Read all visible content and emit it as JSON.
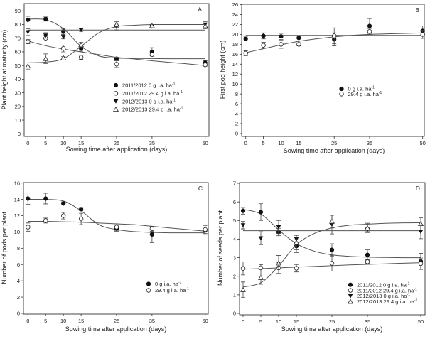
{
  "chart_data": [
    {
      "type": "scatter",
      "panel_label": "A",
      "xlabel": "Sowing time after application (days)",
      "ylabel": "Plant height at maturity (cm)",
      "x_ticks": [
        0,
        5,
        10,
        15,
        25,
        35,
        50
      ],
      "y_ticks": [
        0,
        10,
        20,
        30,
        40,
        50,
        60,
        70,
        80,
        90
      ],
      "legend_position": "lower-center",
      "grid": false,
      "fit_x": [
        0,
        5,
        10,
        15,
        20,
        25,
        30,
        35,
        40,
        45,
        50
      ],
      "series": [
        {
          "name": "2011/2012 0 g i.a. ha",
          "name_sup": "-1",
          "marker": "filled-circle",
          "x": [
            0,
            5,
            10,
            15,
            25,
            35,
            50
          ],
          "y": [
            83.5,
            84,
            75,
            62.5,
            55,
            60,
            52
          ],
          "err": [
            2.5,
            1.5,
            2,
            2,
            1,
            3,
            1.5
          ],
          "fit": [
            84,
            83.5,
            77,
            64,
            57,
            55.5,
            55.2,
            55.1,
            55,
            55,
            55
          ]
        },
        {
          "name": "2011/2012 29.4 g i.a. ha",
          "name_sup": "-1",
          "marker": "open-circle",
          "x": [
            0,
            5,
            10,
            15,
            25,
            35,
            50
          ],
          "y": [
            67.5,
            70,
            62.5,
            56,
            51,
            58,
            50.5
          ],
          "err": [
            1.5,
            2,
            2.5,
            1.5,
            2.5,
            1,
            1
          ],
          "fit": [
            68,
            64.5,
            62,
            60,
            58,
            56,
            54.8,
            53.5,
            52.3,
            51.2,
            50
          ]
        },
        {
          "name": "2012/2013 0 g i.a. ha",
          "name_sup": "-1",
          "marker": "filled-down-triangle",
          "x": [
            0,
            5,
            10,
            15,
            25,
            35,
            50
          ],
          "y": [
            74.5,
            72,
            71,
            76,
            78.5,
            78.5,
            80
          ],
          "err": [
            2.5,
            2,
            1.5,
            1,
            2.5,
            1,
            2
          ],
          "fit": [
            76,
            76,
            76,
            76,
            76,
            76,
            76,
            76,
            76,
            76,
            76
          ]
        },
        {
          "name": "2012/2013 29.4 g i.a. ha",
          "name_sup": "-1",
          "marker": "open-up-triangle",
          "x": [
            0,
            5,
            10,
            15,
            25,
            35,
            50
          ],
          "y": [
            49.5,
            55,
            55.5,
            65,
            80,
            79,
            79
          ],
          "err": [
            2.5,
            3.5,
            1,
            2,
            2,
            1,
            2
          ],
          "fit": [
            52,
            52.5,
            55,
            64,
            74,
            78.5,
            79.5,
            80,
            80,
            80,
            80
          ]
        }
      ]
    },
    {
      "type": "scatter",
      "panel_label": "B",
      "xlabel": "Sowing time after application (days)",
      "ylabel": "First pod height (cm)",
      "x_ticks": [
        0,
        5,
        10,
        15,
        25,
        35,
        50
      ],
      "y_ticks": [
        0,
        2,
        4,
        6,
        8,
        10,
        12,
        14,
        16,
        18,
        20,
        22,
        24,
        26
      ],
      "legend_position": "center",
      "grid": false,
      "fit_x": [
        0,
        5,
        10,
        15,
        20,
        25,
        30,
        35,
        40,
        45,
        50
      ],
      "series": [
        {
          "name": "0 g i.a. ha",
          "name_sup": "-1",
          "marker": "filled-circle",
          "x": [
            0,
            5,
            10,
            15,
            25,
            35,
            50
          ],
          "y": [
            19.1,
            19.7,
            19.6,
            19.3,
            19,
            21.7,
            20.7
          ],
          "err": [
            0.4,
            0.6,
            0.6,
            0.2,
            1.3,
            1.5,
            1
          ],
          "fit": [
            19.8,
            19.8,
            19.8,
            19.8,
            19.8,
            19.8,
            19.8,
            19.8,
            19.8,
            19.8,
            19.8
          ]
        },
        {
          "name": "29.4 g i.a. ha",
          "name_sup": "-1",
          "marker": "open-circle",
          "x": [
            0,
            5,
            10,
            15,
            25,
            35,
            50
          ],
          "y": [
            16.2,
            17.8,
            18,
            18,
            19.7,
            20.6,
            20
          ],
          "err": [
            0.5,
            0.6,
            0.8,
            0.3,
            1.6,
            0.6,
            0.8
          ],
          "fit": [
            16.3,
            17.1,
            17.9,
            18.6,
            19.1,
            19.5,
            19.8,
            20,
            20.1,
            20.2,
            20.3
          ]
        }
      ]
    },
    {
      "type": "scatter",
      "panel_label": "C",
      "xlabel": "Sowing time after application (days)",
      "ylabel": "Number of pods per plant",
      "x_ticks": [
        0,
        5,
        10,
        15,
        25,
        35,
        50
      ],
      "y_ticks": [
        0,
        2,
        4,
        6,
        8,
        10,
        12,
        14,
        16
      ],
      "legend_position": "lower-right",
      "grid": false,
      "fit_x": [
        0,
        5,
        10,
        15,
        20,
        25,
        30,
        35,
        40,
        45,
        50
      ],
      "series": [
        {
          "name": "0 g i.a. ha",
          "name_sup": "-1",
          "marker": "filled-circle",
          "x": [
            0,
            5,
            10,
            15,
            25,
            35,
            50
          ],
          "y": [
            14.1,
            14.1,
            13.5,
            12.8,
            10.4,
            9.7,
            10.2
          ],
          "err": [
            0.7,
            0.65,
            0.2,
            0.2,
            0.3,
            1,
            0.4
          ],
          "fit": [
            14,
            14,
            13.8,
            12.6,
            10.9,
            10.3,
            10.05,
            9.95,
            9.9,
            9.9,
            9.9
          ]
        },
        {
          "name": "29.4 g i.a. ha",
          "name_sup": "-1",
          "marker": "open-circle",
          "x": [
            0,
            5,
            10,
            15,
            25,
            35,
            50
          ],
          "y": [
            10.6,
            11.4,
            12,
            11.6,
            10.6,
            10.4,
            10.3
          ],
          "err": [
            0.5,
            0.3,
            0.4,
            0.7,
            0.4,
            0.3,
            0.5
          ],
          "fit": [
            11.3,
            11.3,
            11.25,
            11.2,
            11.1,
            11,
            10.9,
            10.7,
            10.5,
            10.3,
            10.1
          ]
        }
      ]
    },
    {
      "type": "scatter",
      "panel_label": "D",
      "xlabel": "Sowing time after application (days)",
      "ylabel": "Number of seeds per plant",
      "x_ticks": [
        0,
        5,
        10,
        15,
        25,
        35,
        50
      ],
      "y_ticks": [
        0,
        1,
        2,
        3,
        4,
        5,
        6,
        7
      ],
      "legend_position": "lower-right",
      "grid": false,
      "fit_x": [
        0,
        5,
        10,
        15,
        20,
        25,
        30,
        35,
        40,
        45,
        50
      ],
      "series": [
        {
          "name": "2011/2012 0 g i.a. ha",
          "name_sup": "-1",
          "marker": "filled-circle",
          "x": [
            0,
            5,
            10,
            15,
            25,
            35,
            50
          ],
          "y": [
            5.52,
            5.45,
            4.38,
            3.62,
            3.42,
            3.15,
            2.8
          ],
          "err": [
            0.18,
            0.45,
            0.2,
            0.35,
            0.33,
            0.27,
            0.43
          ],
          "fit": [
            5.6,
            5.35,
            4.5,
            3.75,
            3.35,
            3.15,
            3.07,
            3.03,
            3.01,
            3.0,
            3.0
          ]
        },
        {
          "name": "2011/2012 29.4 g i.a. ha",
          "name_sup": "-1",
          "marker": "open-circle",
          "x": [
            0,
            5,
            10,
            15,
            25,
            35,
            50
          ],
          "y": [
            2.42,
            2.45,
            2.45,
            2.43,
            2.7,
            2.78,
            2.68
          ],
          "err": [
            0.35,
            0.17,
            0.3,
            0.2,
            0.43,
            0.1,
            0.3
          ],
          "fit": [
            2.38,
            2.41,
            2.45,
            2.49,
            2.53,
            2.57,
            2.61,
            2.64,
            2.67,
            2.7,
            2.73
          ]
        },
        {
          "name": "2012/2013 0 g i.a. ha",
          "name_sup": "-1",
          "marker": "filled-down-triangle",
          "x": [
            0,
            5,
            10,
            15,
            25,
            35,
            50
          ],
          "y": [
            4.75,
            4.05,
            4.65,
            4.0,
            4.78,
            4.5,
            4.4
          ],
          "err": [
            0.2,
            0.35,
            0.35,
            0.2,
            0.5,
            0.1,
            0.38
          ],
          "fit": [
            4.45,
            4.45,
            4.45,
            4.45,
            4.45,
            4.45,
            4.45,
            4.45,
            4.45,
            4.45,
            4.45
          ]
        },
        {
          "name": "2012/2013 29.4 g i.a. ha",
          "name_sup": "-1",
          "marker": "open-up-triangle",
          "x": [
            0,
            5,
            10,
            15,
            25,
            35,
            50
          ],
          "y": [
            1.27,
            1.92,
            2.7,
            3.82,
            4.95,
            4.6,
            4.82
          ],
          "err": [
            0.42,
            0.35,
            0.42,
            0.4,
            0.35,
            0.25,
            0.32
          ],
          "fit": [
            1.42,
            1.65,
            2.55,
            3.7,
            4.3,
            4.6,
            4.75,
            4.8,
            4.85,
            4.87,
            4.88
          ]
        }
      ]
    }
  ]
}
